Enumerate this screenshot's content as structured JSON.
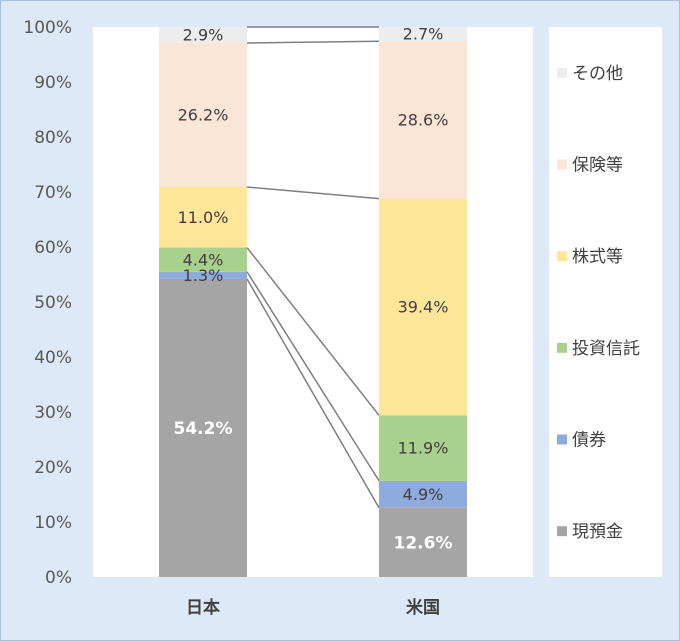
{
  "chart_data": {
    "type": "bar",
    "stacking": "percent",
    "categories": [
      "日本",
      "米国"
    ],
    "ylim": [
      0,
      100
    ],
    "y_ticks": [
      0,
      10,
      20,
      30,
      40,
      50,
      60,
      70,
      80,
      90,
      100
    ],
    "y_tick_labels": [
      "0%",
      "10%",
      "20%",
      "30%",
      "40%",
      "50%",
      "60%",
      "70%",
      "80%",
      "90%",
      "100%"
    ],
    "grid": false,
    "legend": "right",
    "series_lines": true,
    "series": [
      {
        "name": "現預金",
        "values": [
          54.2,
          12.6
        ],
        "labels": [
          "54.2%",
          "12.6%"
        ],
        "color": "#a5a5a5",
        "label_color": "#ffffff",
        "label_weight": "bold"
      },
      {
        "name": "債券",
        "values": [
          1.3,
          4.9
        ],
        "labels": [
          "1.3%",
          "4.9%"
        ],
        "color": "#8faadc",
        "label_color": "#404040"
      },
      {
        "name": "投資信託",
        "values": [
          4.4,
          11.9
        ],
        "labels": [
          "4.4%",
          "11.9%"
        ],
        "color": "#a9d18e",
        "label_color": "#404040"
      },
      {
        "name": "株式等",
        "values": [
          11.0,
          39.4
        ],
        "labels": [
          "11.0%",
          "39.4%"
        ],
        "color": "#ffe699",
        "label_color": "#404040"
      },
      {
        "name": "保険等",
        "values": [
          26.2,
          28.6
        ],
        "labels": [
          "26.2%",
          "28.6%"
        ],
        "color": "#fbe5d6",
        "label_color": "#404040"
      },
      {
        "name": "その他",
        "values": [
          2.9,
          2.7
        ],
        "labels": [
          "2.9%",
          "2.7%"
        ],
        "color": "#ededed",
        "label_color": "#404040"
      }
    ]
  },
  "colors": {
    "background": "#dde9f6",
    "border": "#a9bfdc",
    "plot_background": "#ffffff",
    "series_line": "#7f7f7f",
    "axis_text": "#595959",
    "category_text": "#404040",
    "legend_text": "#404040"
  }
}
